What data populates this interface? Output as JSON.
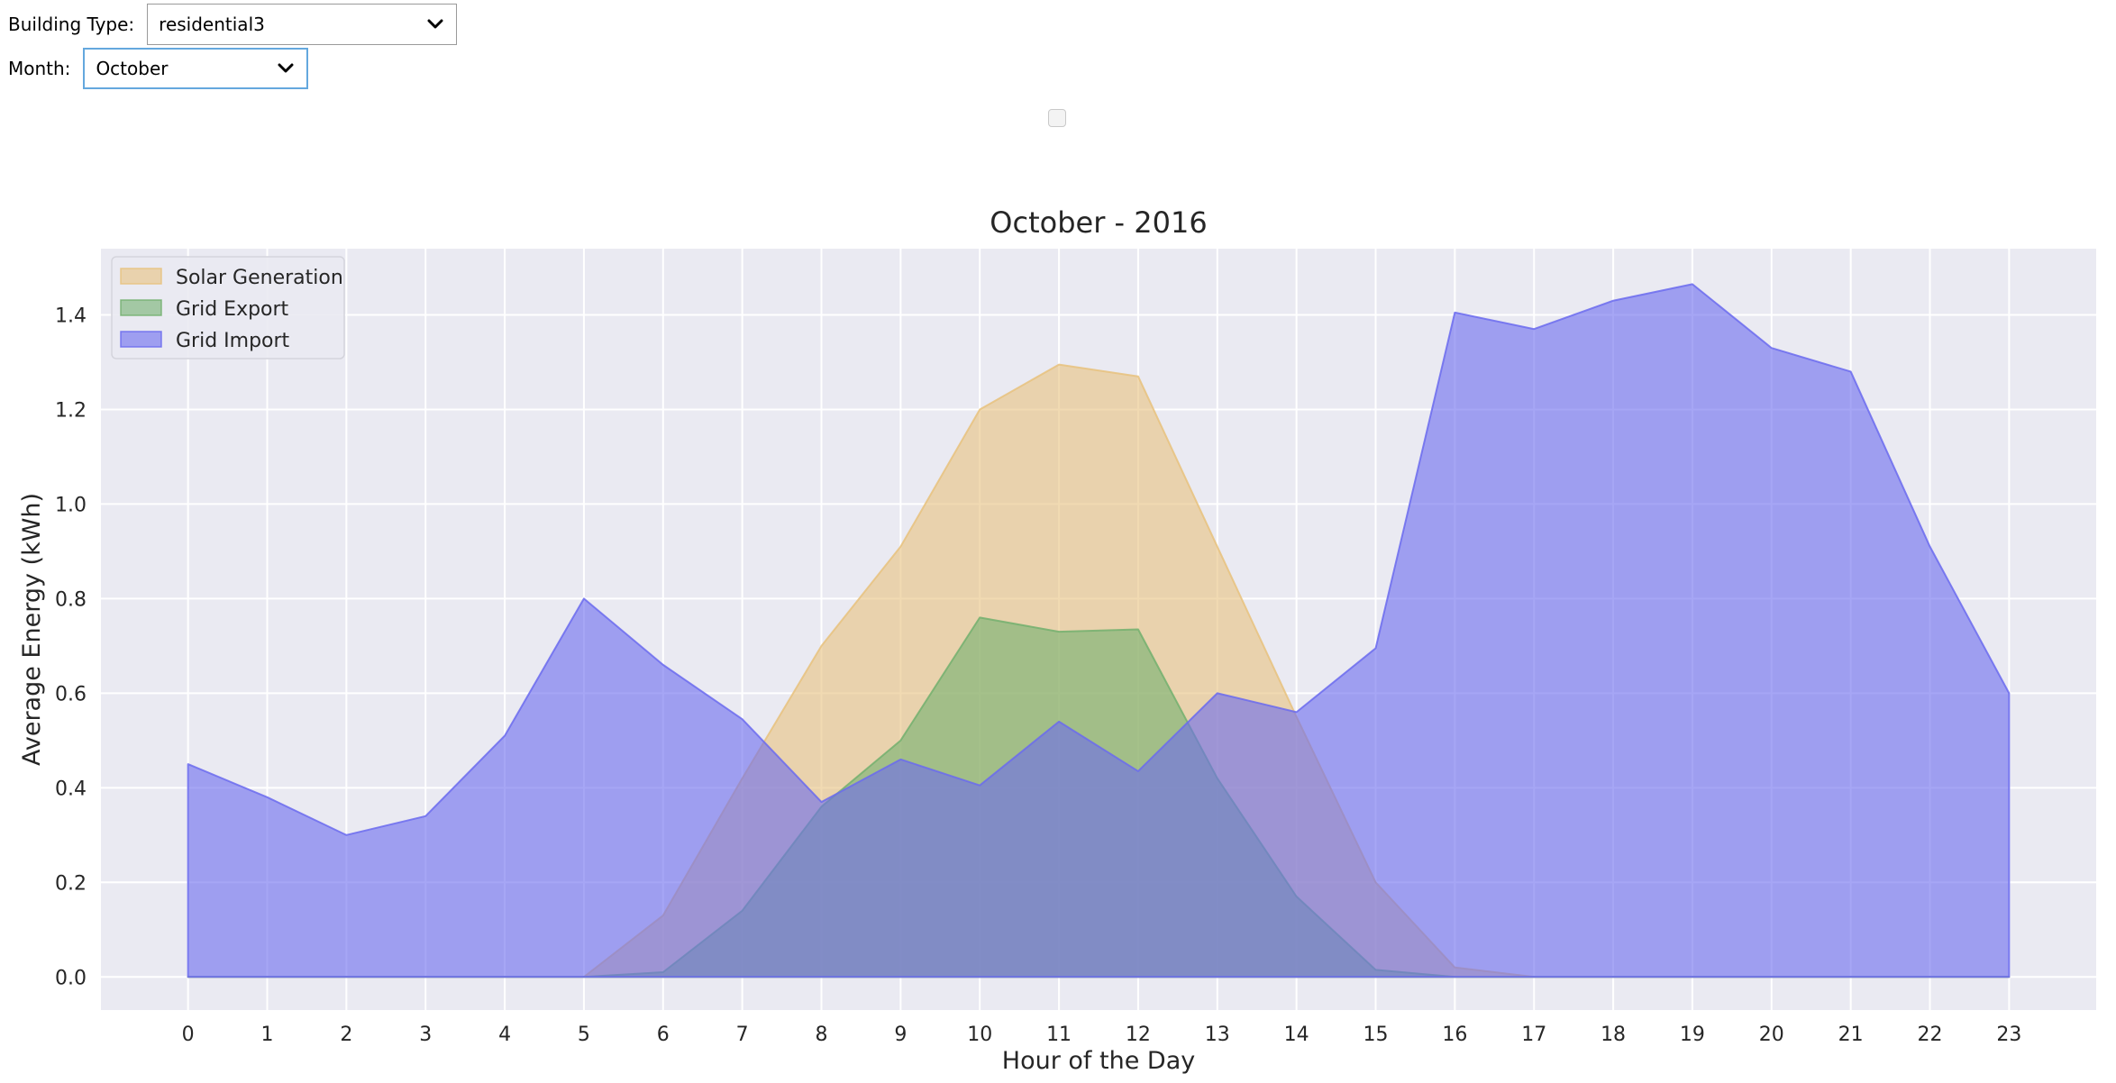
{
  "controls": {
    "building_type": {
      "label": "Building Type:",
      "value": "residential3"
    },
    "month": {
      "label": "Month:",
      "value": "October"
    }
  },
  "chart_data": {
    "type": "area",
    "title": "October - 2016",
    "xlabel": "Hour of the Day",
    "ylabel": "Average Energy (kWh)",
    "x": [
      0,
      1,
      2,
      3,
      4,
      5,
      6,
      7,
      8,
      9,
      10,
      11,
      12,
      13,
      14,
      15,
      16,
      17,
      18,
      19,
      20,
      21,
      22,
      23
    ],
    "xlim": [
      -1.1,
      24.1
    ],
    "ylim": [
      -0.07,
      1.54
    ],
    "yticks": [
      0.0,
      0.2,
      0.4,
      0.6,
      0.8,
      1.0,
      1.2,
      1.4
    ],
    "ytick_labels": [
      "0.0",
      "0.2",
      "0.4",
      "0.6",
      "0.8",
      "1.0",
      "1.2",
      "1.4"
    ],
    "xtick_labels": [
      "0",
      "1",
      "2",
      "3",
      "4",
      "5",
      "6",
      "7",
      "8",
      "9",
      "10",
      "11",
      "12",
      "13",
      "14",
      "15",
      "16",
      "17",
      "18",
      "19",
      "20",
      "21",
      "22",
      "23"
    ],
    "grid": true,
    "legend_position": "top-left",
    "series": [
      {
        "name": "Solar Generation",
        "color": "#e8c27e",
        "opacity": 0.6,
        "values": [
          0,
          0,
          0,
          0,
          0,
          0,
          0.13,
          0.42,
          0.7,
          0.91,
          1.2,
          1.295,
          1.27,
          0.91,
          0.55,
          0.2,
          0.02,
          0,
          0,
          0,
          0,
          0,
          0,
          0
        ]
      },
      {
        "name": "Grid Export",
        "color": "#73b06f",
        "opacity": 0.6,
        "values": [
          0,
          0,
          0,
          0,
          0,
          0,
          0.01,
          0.14,
          0.36,
          0.5,
          0.76,
          0.73,
          0.735,
          0.42,
          0.17,
          0.015,
          0,
          0,
          0,
          0,
          0,
          0,
          0,
          0
        ]
      },
      {
        "name": "Grid Import",
        "color": "#6b6bef",
        "opacity": 0.6,
        "values": [
          0.45,
          0.38,
          0.3,
          0.34,
          0.51,
          0.8,
          0.66,
          0.545,
          0.37,
          0.46,
          0.405,
          0.54,
          0.435,
          0.6,
          0.56,
          0.695,
          1.405,
          1.37,
          1.43,
          1.465,
          1.33,
          1.28,
          0.91,
          0.6
        ]
      }
    ]
  }
}
